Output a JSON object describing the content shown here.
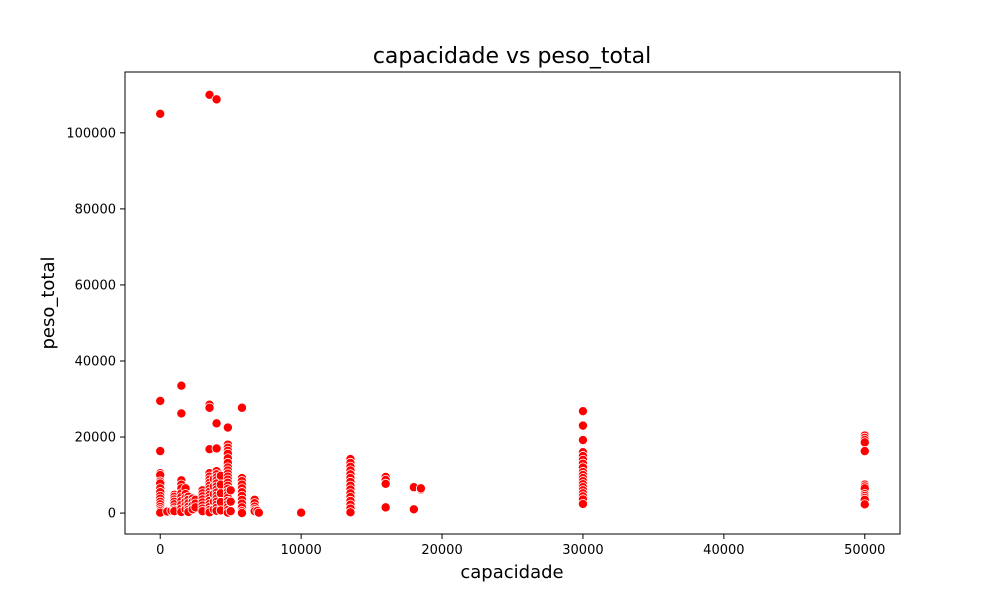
{
  "chart_data": {
    "type": "scatter",
    "title": "capacidade vs peso_total",
    "xlabel": "capacidade",
    "ylabel": "peso_total",
    "xlim": [
      -2500,
      52500
    ],
    "ylim": [
      -5500,
      116000
    ],
    "xticks": [
      0,
      10000,
      20000,
      30000,
      40000,
      50000
    ],
    "yticks": [
      0,
      20000,
      40000,
      60000,
      80000,
      100000
    ],
    "grid": false,
    "marker_color": "#ff0000",
    "marker_edge_color": "#ffffff",
    "points": [
      [
        0,
        105000
      ],
      [
        0,
        29500
      ],
      [
        0,
        16300
      ],
      [
        0,
        10500
      ],
      [
        0,
        10000
      ],
      [
        0,
        8300
      ],
      [
        0,
        7800
      ],
      [
        0,
        6500
      ],
      [
        0,
        5500
      ],
      [
        0,
        4500
      ],
      [
        0,
        3800
      ],
      [
        0,
        3000
      ],
      [
        0,
        2300
      ],
      [
        0,
        1600
      ],
      [
        0,
        1000
      ],
      [
        0,
        500
      ],
      [
        0,
        100
      ],
      [
        500,
        400
      ],
      [
        800,
        600
      ],
      [
        1000,
        4800
      ],
      [
        1000,
        4300
      ],
      [
        1000,
        3600
      ],
      [
        1000,
        3000
      ],
      [
        1000,
        2300
      ],
      [
        1000,
        1500
      ],
      [
        1000,
        900
      ],
      [
        1000,
        500
      ],
      [
        1500,
        33500
      ],
      [
        1500,
        26200
      ],
      [
        1500,
        8600
      ],
      [
        1500,
        7500
      ],
      [
        1500,
        6500
      ],
      [
        1500,
        5200
      ],
      [
        1500,
        4200
      ],
      [
        1500,
        3200
      ],
      [
        1500,
        2200
      ],
      [
        1500,
        1200
      ],
      [
        1500,
        300
      ],
      [
        1800,
        6500
      ],
      [
        1800,
        5000
      ],
      [
        1800,
        4000
      ],
      [
        1800,
        3000
      ],
      [
        1800,
        2000
      ],
      [
        1800,
        1000
      ],
      [
        2000,
        4300
      ],
      [
        2000,
        3500
      ],
      [
        2000,
        2600
      ],
      [
        2000,
        1700
      ],
      [
        2000,
        900
      ],
      [
        2000,
        300
      ],
      [
        2300,
        3800
      ],
      [
        2300,
        3000
      ],
      [
        2300,
        2000
      ],
      [
        2300,
        1000
      ],
      [
        2500,
        3500
      ],
      [
        2500,
        2500
      ],
      [
        2500,
        1500
      ],
      [
        3000,
        6000
      ],
      [
        3000,
        5200
      ],
      [
        3000,
        4400
      ],
      [
        3000,
        3600
      ],
      [
        3000,
        2800
      ],
      [
        3000,
        2000
      ],
      [
        3000,
        1200
      ],
      [
        3000,
        500
      ],
      [
        3500,
        110000
      ],
      [
        3500,
        28500
      ],
      [
        3500,
        27700
      ],
      [
        3500,
        16800
      ],
      [
        3500,
        10500
      ],
      [
        3500,
        9600
      ],
      [
        3500,
        8800
      ],
      [
        3500,
        8000
      ],
      [
        3500,
        7200
      ],
      [
        3500,
        6400
      ],
      [
        3500,
        5600
      ],
      [
        3500,
        4800
      ],
      [
        3500,
        4000
      ],
      [
        3500,
        3200
      ],
      [
        3500,
        2400
      ],
      [
        3500,
        1600
      ],
      [
        3500,
        800
      ],
      [
        3500,
        200
      ],
      [
        3800,
        9000
      ],
      [
        3800,
        7000
      ],
      [
        3800,
        5000
      ],
      [
        3800,
        3000
      ],
      [
        3800,
        1000
      ],
      [
        4000,
        108800
      ],
      [
        4000,
        23600
      ],
      [
        4000,
        17000
      ],
      [
        4000,
        11000
      ],
      [
        4000,
        10200
      ],
      [
        4000,
        9400
      ],
      [
        4000,
        8600
      ],
      [
        4000,
        7800
      ],
      [
        4000,
        7000
      ],
      [
        4000,
        6200
      ],
      [
        4000,
        5400
      ],
      [
        4000,
        4600
      ],
      [
        4000,
        3800
      ],
      [
        4000,
        3000
      ],
      [
        4000,
        2200
      ],
      [
        4000,
        1400
      ],
      [
        4000,
        600
      ],
      [
        4300,
        9800
      ],
      [
        4300,
        7500
      ],
      [
        4300,
        5200
      ],
      [
        4300,
        2900
      ],
      [
        4300,
        700
      ],
      [
        4800,
        22500
      ],
      [
        4800,
        18000
      ],
      [
        4800,
        17200
      ],
      [
        4800,
        16400
      ],
      [
        4800,
        15600
      ],
      [
        4800,
        14400
      ],
      [
        4800,
        13200
      ],
      [
        4800,
        12000
      ],
      [
        4800,
        11200
      ],
      [
        4800,
        10400
      ],
      [
        4800,
        9600
      ],
      [
        4800,
        8800
      ],
      [
        4800,
        8000
      ],
      [
        4800,
        7200
      ],
      [
        4800,
        6400
      ],
      [
        4800,
        5600
      ],
      [
        4800,
        4800
      ],
      [
        4800,
        4000
      ],
      [
        4800,
        3200
      ],
      [
        4800,
        2400
      ],
      [
        4800,
        1600
      ],
      [
        4800,
        800
      ],
      [
        4800,
        100
      ],
      [
        5000,
        6000
      ],
      [
        5000,
        3000
      ],
      [
        5000,
        500
      ],
      [
        5800,
        27700
      ],
      [
        5800,
        9200
      ],
      [
        5800,
        8400
      ],
      [
        5800,
        7500
      ],
      [
        5800,
        6500
      ],
      [
        5800,
        5500
      ],
      [
        5800,
        4500
      ],
      [
        5800,
        3500
      ],
      [
        5800,
        2500
      ],
      [
        5800,
        1500
      ],
      [
        5800,
        500
      ],
      [
        5800,
        0
      ],
      [
        6700,
        3500
      ],
      [
        6700,
        2600
      ],
      [
        6700,
        1700
      ],
      [
        6700,
        1000
      ],
      [
        6700,
        500
      ],
      [
        6900,
        600
      ],
      [
        7000,
        100
      ],
      [
        10000,
        300
      ],
      [
        10000,
        100
      ],
      [
        13500,
        14200
      ],
      [
        13500,
        13200
      ],
      [
        13500,
        12200
      ],
      [
        13500,
        11200
      ],
      [
        13500,
        10200
      ],
      [
        13500,
        9200
      ],
      [
        13500,
        8200
      ],
      [
        13500,
        7200
      ],
      [
        13500,
        6200
      ],
      [
        13500,
        5200
      ],
      [
        13500,
        4200
      ],
      [
        13500,
        3200
      ],
      [
        13500,
        2200
      ],
      [
        13500,
        1200
      ],
      [
        13500,
        200
      ],
      [
        16000,
        9500
      ],
      [
        16000,
        8700
      ],
      [
        16000,
        7700
      ],
      [
        16000,
        1500
      ],
      [
        18000,
        6800
      ],
      [
        18000,
        1000
      ],
      [
        18500,
        6200
      ],
      [
        18500,
        6500
      ],
      [
        30000,
        26800
      ],
      [
        30000,
        23000
      ],
      [
        30000,
        19200
      ],
      [
        30000,
        16000
      ],
      [
        30000,
        15000
      ],
      [
        30000,
        14000
      ],
      [
        30000,
        13000
      ],
      [
        30000,
        12000
      ],
      [
        30000,
        10800
      ],
      [
        30000,
        10000
      ],
      [
        30000,
        9200
      ],
      [
        30000,
        8400
      ],
      [
        30000,
        7600
      ],
      [
        30000,
        6800
      ],
      [
        30000,
        6000
      ],
      [
        30000,
        5200
      ],
      [
        30000,
        4400
      ],
      [
        30000,
        3600
      ],
      [
        30000,
        2400
      ],
      [
        50000,
        20400
      ],
      [
        50000,
        19800
      ],
      [
        50000,
        19200
      ],
      [
        50000,
        18600
      ],
      [
        50000,
        16300
      ],
      [
        50000,
        7500
      ],
      [
        50000,
        7000
      ],
      [
        50000,
        6500
      ],
      [
        50000,
        5000
      ],
      [
        50000,
        4500
      ],
      [
        50000,
        4000
      ],
      [
        50000,
        3500
      ],
      [
        50000,
        2300
      ]
    ]
  }
}
